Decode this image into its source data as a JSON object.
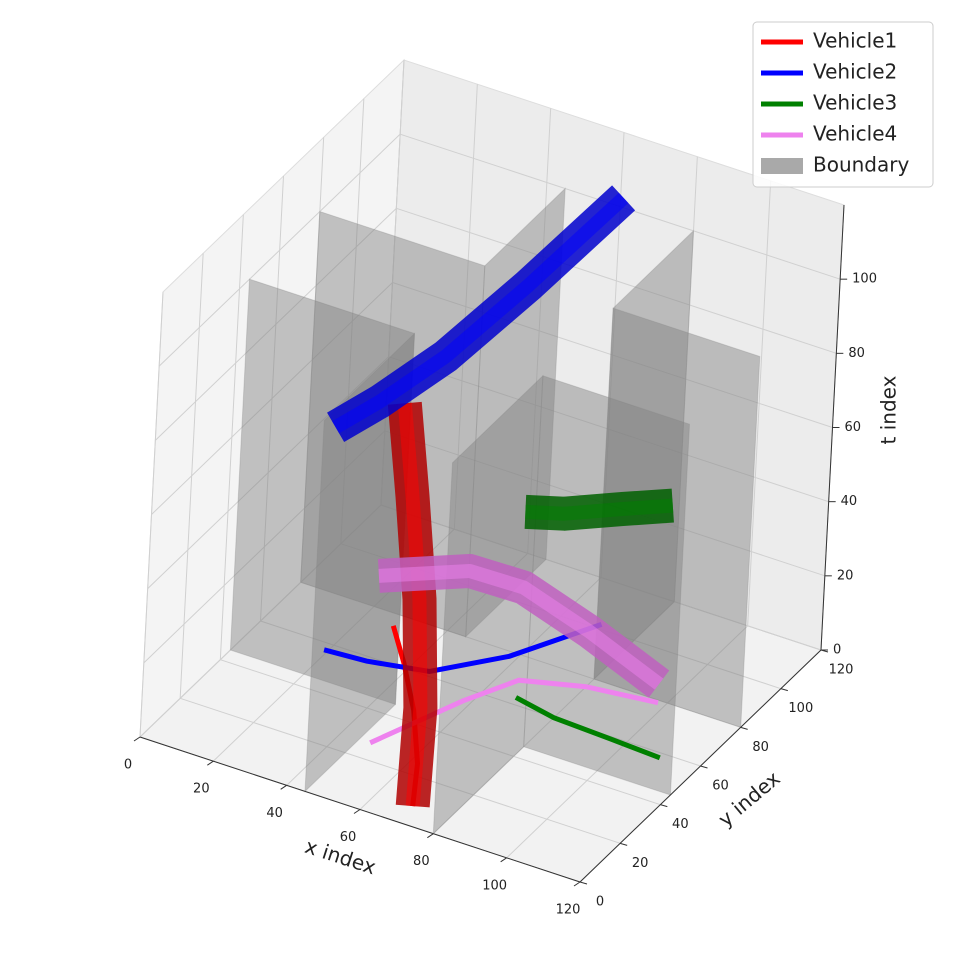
{
  "chart_data": {
    "type": "voxel3d",
    "xlabel": "x index",
    "ylabel": "y index",
    "tlabel": "t index",
    "xlim": [
      0,
      120
    ],
    "ylim": [
      0,
      120
    ],
    "tlim": [
      0,
      120
    ],
    "xticks": [
      0,
      20,
      40,
      60,
      80,
      100,
      120
    ],
    "yticks": [
      0,
      20,
      40,
      60,
      80,
      100,
      120
    ],
    "tticks": [
      0,
      20,
      40,
      60,
      80,
      100
    ],
    "grid": true,
    "legend": "upper right",
    "series": [
      {
        "name": "Vehicle1",
        "color": "#ff0000",
        "tube_color": "#b00000",
        "x": [
          70,
          62,
          50,
          38,
          28
        ],
        "y": [
          8,
          25,
          45,
          62,
          75
        ],
        "t": [
          0,
          15,
          30,
          45,
          60
        ]
      },
      {
        "name": "Vehicle2",
        "color": "#0000ff",
        "tube_color": "#0000cc",
        "x": [
          19,
          30,
          45,
          58,
          70
        ],
        "y": [
          57,
          58,
          62,
          78,
          102
        ],
        "t": [
          60,
          70,
          85,
          100,
          115
        ]
      },
      {
        "name": "Vehicle3",
        "color": "#008000",
        "tube_color": "#006000",
        "x": [
          110,
          96,
          80,
          68
        ],
        "y": [
          58,
          59,
          60,
          63
        ],
        "t": [
          68,
          62,
          55,
          50
        ]
      },
      {
        "name": "Vehicle4",
        "color": "#ee82ee",
        "tube_color": "#c060c0",
        "x": [
          98,
          80,
          65,
          58,
          48
        ],
        "y": [
          79,
          76,
          70,
          55,
          27
        ],
        "t": [
          5,
          15,
          25,
          35,
          45
        ]
      }
    ],
    "boundary": {
      "name": "Boundary",
      "color": "#a9a9a9",
      "height": 100,
      "walls": [
        {
          "x": [
            0,
            45
          ],
          "y": [
            45,
            45
          ]
        },
        {
          "x": [
            45,
            45
          ],
          "y": [
            0,
            45
          ]
        },
        {
          "x": [
            0,
            45
          ],
          "y": [
            80,
            80
          ]
        },
        {
          "x": [
            45,
            45
          ],
          "y": [
            80,
            120
          ]
        },
        {
          "x": [
            80,
            120
          ],
          "y": [
            45,
            45
          ]
        },
        {
          "x": [
            80,
            80
          ],
          "y": [
            0,
            45
          ]
        },
        {
          "x": [
            80,
            120
          ],
          "y": [
            80,
            80
          ]
        },
        {
          "x": [
            80,
            80
          ],
          "y": [
            80,
            120
          ]
        }
      ]
    }
  }
}
